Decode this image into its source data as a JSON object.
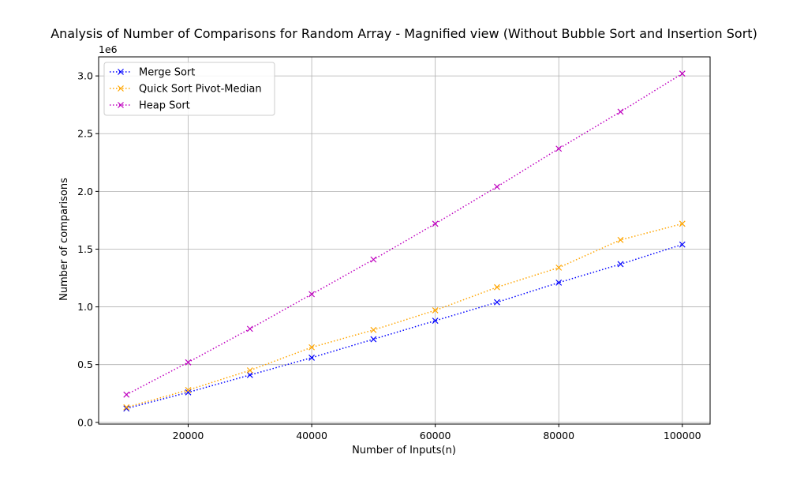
{
  "chart_data": {
    "type": "line",
    "title": "Analysis of Number of Comparisons for Random Array - Magnified view (Without Bubble Sort and Insertion Sort)",
    "xlabel": "Number of Inputs(n)",
    "ylabel": "Number of comparisons",
    "y_offset_label": "1e6",
    "x": [
      10000,
      20000,
      30000,
      40000,
      50000,
      60000,
      70000,
      80000,
      90000,
      100000
    ],
    "xlim": [
      5500,
      104500
    ],
    "ylim": [
      -15000,
      3165000
    ],
    "xticks": [
      20000,
      40000,
      60000,
      80000,
      100000
    ],
    "xtick_labels": [
      "20000",
      "40000",
      "60000",
      "80000",
      "100000"
    ],
    "yticks": [
      0,
      500000,
      1000000,
      1500000,
      2000000,
      2500000,
      3000000
    ],
    "ytick_labels": [
      "0.0",
      "0.5",
      "1.0",
      "1.5",
      "2.0",
      "2.5",
      "3.0"
    ],
    "grid": true,
    "legend_position": "top-left",
    "series": [
      {
        "name": "Merge Sort",
        "color": "#0000ff",
        "marker": "x",
        "linestyle": "dotted",
        "values": [
          120000,
          260000,
          410000,
          560000,
          720000,
          880000,
          1040000,
          1210000,
          1370000,
          1540000
        ]
      },
      {
        "name": "Quick Sort Pivot-Median",
        "color": "#ffa500",
        "marker": "x",
        "linestyle": "dotted",
        "values": [
          130000,
          280000,
          450000,
          650000,
          800000,
          970000,
          1170000,
          1340000,
          1580000,
          1720000
        ]
      },
      {
        "name": "Heap Sort",
        "color": "#bf00bf",
        "marker": "x",
        "linestyle": "dotted",
        "values": [
          240000,
          520000,
          810000,
          1110000,
          1410000,
          1720000,
          2040000,
          2370000,
          2690000,
          3020000
        ]
      }
    ]
  }
}
